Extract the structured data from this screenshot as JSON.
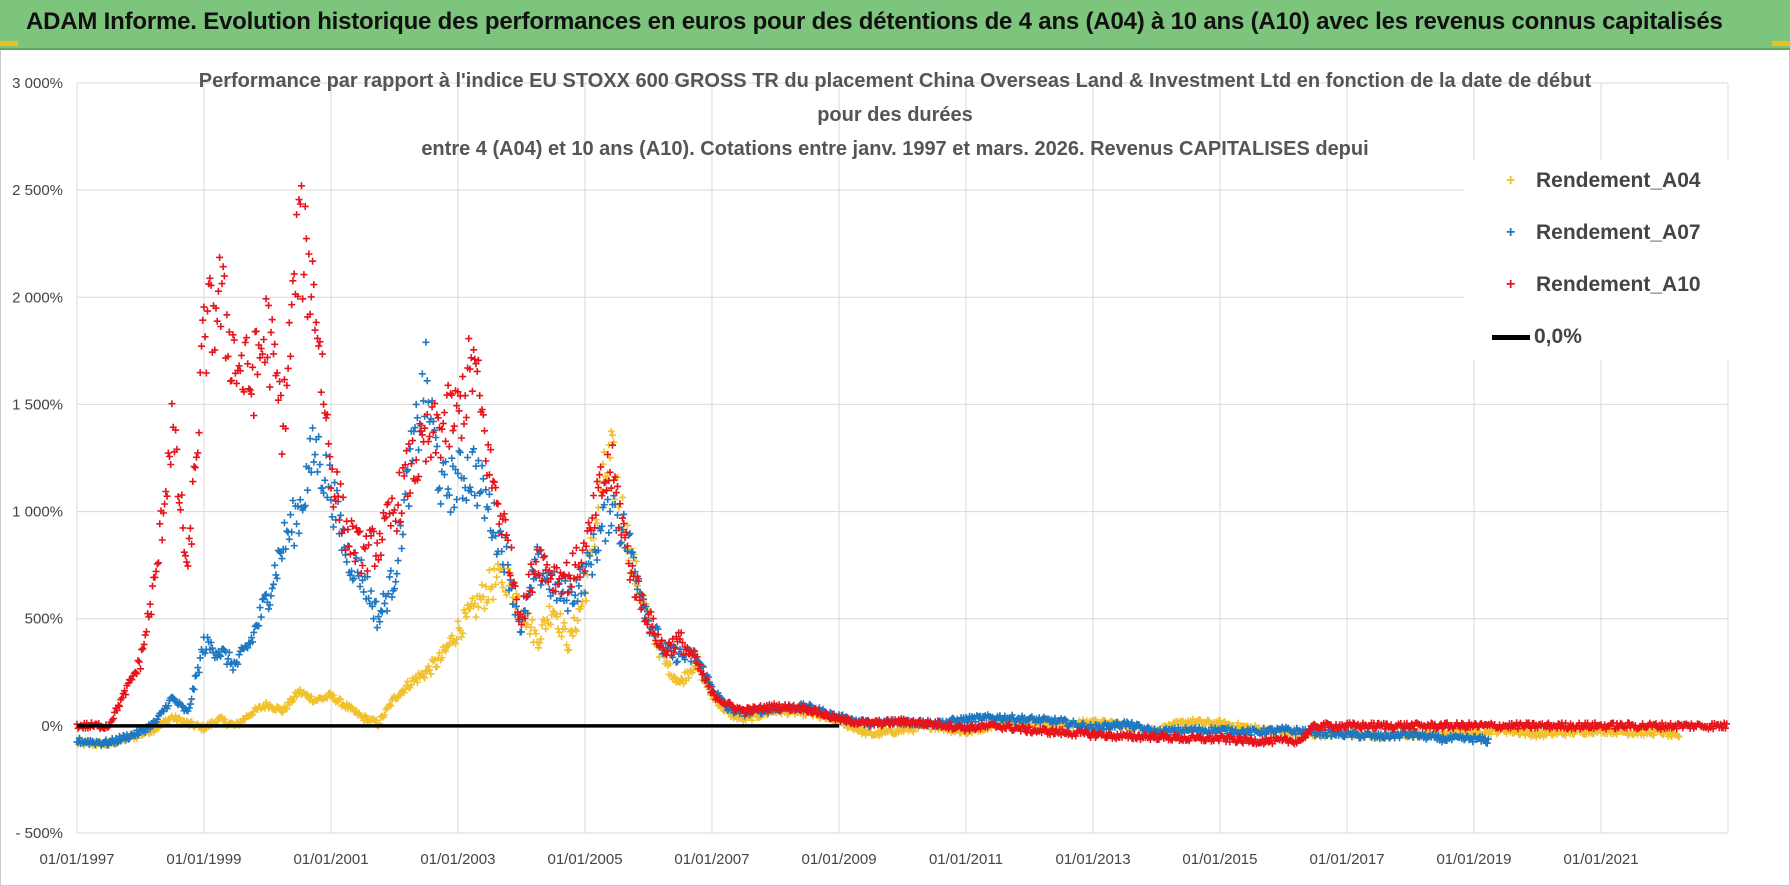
{
  "header": {
    "banner_title": "ADAM Informe. Evolution historique des performances en euros pour des détentions de 4 ans (A04) à 10 ans (A10) avec les revenus connus capitalisés"
  },
  "colors": {
    "banner": "#7dc47c",
    "A04": "#f2c12e",
    "A07": "#1f78c1",
    "A10": "#e8141c",
    "zero_line": "#000000",
    "grid": "#d9d9d9"
  },
  "chart_data": {
    "type": "scatter",
    "title_lines": [
      "Performance par rapport à l'indice EU STOXX 600 GROSS TR  du placement China Overseas Land & Investment Ltd en fonction de la date de début",
      "pour des durées",
      "entre 4 (A04) et 10 ans (A10). Cotations entre janv. 1997 et mars. 2026. Revenus CAPITALISES depui"
    ],
    "xlabel": "",
    "ylabel": "",
    "x_axis": {
      "type": "date",
      "range": [
        "1997-01-01",
        "2023-01-01"
      ],
      "tick_labels": [
        "01/01/1997",
        "01/01/1999",
        "01/01/2001",
        "01/01/2003",
        "01/01/2005",
        "01/01/2007",
        "01/01/2009",
        "01/01/2011",
        "01/01/2013",
        "01/01/2015",
        "01/01/2017",
        "01/01/2019",
        "01/01/2021"
      ]
    },
    "y_axis": {
      "range": [
        -500,
        3000
      ],
      "ticks": [
        -500,
        0,
        500,
        1000,
        1500,
        2000,
        2500,
        3000
      ],
      "tick_labels": [
        "- 500%",
        "0%",
        "500%",
        "1 000%",
        "1 500%",
        "2 000%",
        "2 500%",
        "3 000%"
      ]
    },
    "grid": "vertical and horizontal",
    "legend": {
      "position": "top-right",
      "entries": [
        "Rendement_A04",
        "Rendement_A07",
        "Rendement_A10",
        "0,0%"
      ]
    },
    "series": [
      {
        "name": "Rendement_A04",
        "marker": "+",
        "points": [
          [
            "1997-01-01",
            -80
          ],
          [
            "1997-07-01",
            -85
          ],
          [
            "1998-01-01",
            -40
          ],
          [
            "1998-04-01",
            -10
          ],
          [
            "1998-07-01",
            40
          ],
          [
            "1998-10-01",
            10
          ],
          [
            "1999-01-01",
            -10
          ],
          [
            "1999-04-01",
            30
          ],
          [
            "1999-07-01",
            0
          ],
          [
            "1999-10-01",
            60
          ],
          [
            "2000-01-01",
            100
          ],
          [
            "2000-04-01",
            70
          ],
          [
            "2000-07-01",
            160
          ],
          [
            "2000-10-01",
            120
          ],
          [
            "2001-01-01",
            140
          ],
          [
            "2001-04-01",
            90
          ],
          [
            "2001-07-01",
            40
          ],
          [
            "2001-10-01",
            10
          ],
          [
            "2002-01-01",
            130
          ],
          [
            "2002-04-01",
            200
          ],
          [
            "2002-07-01",
            250
          ],
          [
            "2002-10-01",
            320
          ],
          [
            "2003-01-01",
            450
          ],
          [
            "2003-04-01",
            540
          ],
          [
            "2003-07-01",
            650
          ],
          [
            "2003-10-01",
            700
          ],
          [
            "2004-01-01",
            560
          ],
          [
            "2004-04-01",
            400
          ],
          [
            "2004-07-01",
            560
          ],
          [
            "2004-10-01",
            380
          ],
          [
            "2005-01-01",
            620
          ],
          [
            "2005-04-01",
            1100
          ],
          [
            "2005-06-01",
            1250
          ],
          [
            "2005-10-01",
            750
          ],
          [
            "2006-01-01",
            500
          ],
          [
            "2006-04-01",
            300
          ],
          [
            "2006-07-01",
            200
          ],
          [
            "2006-10-01",
            300
          ],
          [
            "2007-01-01",
            140
          ],
          [
            "2007-04-01",
            60
          ],
          [
            "2007-07-01",
            30
          ],
          [
            "2008-01-01",
            70
          ],
          [
            "2008-07-01",
            60
          ],
          [
            "2009-01-01",
            20
          ],
          [
            "2009-07-01",
            -40
          ],
          [
            "2010-01-01",
            -20
          ],
          [
            "2010-07-01",
            0
          ],
          [
            "2011-01-01",
            -30
          ],
          [
            "2011-07-01",
            10
          ],
          [
            "2012-01-01",
            20
          ],
          [
            "2012-07-01",
            0
          ],
          [
            "2013-01-01",
            20
          ],
          [
            "2013-07-01",
            0
          ],
          [
            "2014-01-01",
            -20
          ],
          [
            "2014-07-01",
            20
          ],
          [
            "2015-01-01",
            10
          ],
          [
            "2015-07-01",
            -10
          ],
          [
            "2016-01-01",
            -30
          ],
          [
            "2016-07-01",
            -40
          ],
          [
            "2017-01-01",
            -30
          ],
          [
            "2017-07-01",
            -50
          ],
          [
            "2018-01-01",
            -40
          ],
          [
            "2018-07-01",
            -40
          ],
          [
            "2019-01-01",
            -30
          ],
          [
            "2019-07-01",
            -20
          ],
          [
            "2020-01-01",
            -40
          ],
          [
            "2020-07-01",
            -30
          ],
          [
            "2021-01-01",
            -20
          ],
          [
            "2021-07-01",
            -30
          ],
          [
            "2022-01-01",
            -30
          ],
          [
            "2022-04-01",
            -60
          ]
        ]
      },
      {
        "name": "Rendement_A07",
        "marker": "+",
        "points": [
          [
            "1997-01-01",
            -70
          ],
          [
            "1997-07-01",
            -80
          ],
          [
            "1998-01-01",
            -30
          ],
          [
            "1998-04-01",
            20
          ],
          [
            "1998-07-01",
            130
          ],
          [
            "1998-10-01",
            60
          ],
          [
            "1999-01-01",
            380
          ],
          [
            "1999-04-01",
            350
          ],
          [
            "1999-07-01",
            280
          ],
          [
            "1999-10-01",
            400
          ],
          [
            "2000-01-01",
            600
          ],
          [
            "2000-04-01",
            850
          ],
          [
            "2000-07-01",
            1000
          ],
          [
            "2000-10-01",
            1300
          ],
          [
            "2001-01-01",
            1100
          ],
          [
            "2001-04-01",
            800
          ],
          [
            "2001-07-01",
            700
          ],
          [
            "2001-10-01",
            500
          ],
          [
            "2002-01-01",
            700
          ],
          [
            "2002-04-01",
            1200
          ],
          [
            "2002-07-01",
            1600
          ],
          [
            "2002-10-01",
            1100
          ],
          [
            "2003-01-01",
            1150
          ],
          [
            "2003-04-01",
            1200
          ],
          [
            "2003-07-01",
            1000
          ],
          [
            "2003-10-01",
            800
          ],
          [
            "2004-01-01",
            450
          ],
          [
            "2004-04-01",
            750
          ],
          [
            "2004-07-01",
            650
          ],
          [
            "2004-10-01",
            600
          ],
          [
            "2005-01-01",
            700
          ],
          [
            "2005-04-01",
            900
          ],
          [
            "2005-06-01",
            1050
          ],
          [
            "2005-10-01",
            800
          ],
          [
            "2006-01-01",
            500
          ],
          [
            "2006-04-01",
            350
          ],
          [
            "2006-07-01",
            330
          ],
          [
            "2006-10-01",
            320
          ],
          [
            "2007-01-01",
            180
          ],
          [
            "2007-04-01",
            80
          ],
          [
            "2007-07-01",
            60
          ],
          [
            "2008-01-01",
            80
          ],
          [
            "2008-07-01",
            90
          ],
          [
            "2009-01-01",
            40
          ],
          [
            "2009-07-01",
            10
          ],
          [
            "2010-01-01",
            20
          ],
          [
            "2010-07-01",
            10
          ],
          [
            "2011-01-01",
            30
          ],
          [
            "2011-07-01",
            40
          ],
          [
            "2012-01-01",
            30
          ],
          [
            "2012-07-01",
            20
          ],
          [
            "2013-01-01",
            -10
          ],
          [
            "2013-07-01",
            10
          ],
          [
            "2014-01-01",
            -30
          ],
          [
            "2014-07-01",
            -20
          ],
          [
            "2015-01-01",
            -20
          ],
          [
            "2015-07-01",
            -30
          ],
          [
            "2016-01-01",
            -20
          ],
          [
            "2016-07-01",
            -30
          ],
          [
            "2017-01-01",
            -40
          ],
          [
            "2017-07-01",
            -50
          ],
          [
            "2018-01-01",
            -40
          ],
          [
            "2018-07-01",
            -60
          ],
          [
            "2019-01-01",
            -60
          ],
          [
            "2019-04-01",
            -70
          ]
        ]
      },
      {
        "name": "Rendement_A10",
        "marker": "+",
        "points": [
          [
            "1997-01-01",
            0
          ],
          [
            "1997-07-01",
            0
          ],
          [
            "1997-10-01",
            150
          ],
          [
            "1998-01-01",
            300
          ],
          [
            "1998-04-01",
            700
          ],
          [
            "1998-07-01",
            1400
          ],
          [
            "1998-10-01",
            700
          ],
          [
            "1999-01-01",
            1800
          ],
          [
            "1999-04-01",
            2000
          ],
          [
            "1999-07-01",
            1700
          ],
          [
            "1999-10-01",
            1600
          ],
          [
            "2000-01-01",
            1850
          ],
          [
            "2000-04-01",
            1400
          ],
          [
            "2000-07-01",
            2300
          ],
          [
            "2000-10-01",
            2000
          ],
          [
            "2001-01-01",
            1200
          ],
          [
            "2001-04-01",
            900
          ],
          [
            "2001-07-01",
            800
          ],
          [
            "2001-10-01",
            850
          ],
          [
            "2002-01-01",
            1000
          ],
          [
            "2002-04-01",
            1200
          ],
          [
            "2002-07-01",
            1300
          ],
          [
            "2002-10-01",
            1400
          ],
          [
            "2003-01-01",
            1450
          ],
          [
            "2003-04-01",
            1700
          ],
          [
            "2003-07-01",
            1200
          ],
          [
            "2003-10-01",
            900
          ],
          [
            "2004-01-01",
            500
          ],
          [
            "2004-04-01",
            800
          ],
          [
            "2004-07-01",
            700
          ],
          [
            "2004-10-01",
            700
          ],
          [
            "2005-01-01",
            800
          ],
          [
            "2005-04-01",
            1100
          ],
          [
            "2005-06-01",
            1200
          ],
          [
            "2005-10-01",
            700
          ],
          [
            "2006-01-01",
            500
          ],
          [
            "2006-04-01",
            350
          ],
          [
            "2006-07-01",
            400
          ],
          [
            "2006-10-01",
            300
          ],
          [
            "2007-01-01",
            150
          ],
          [
            "2007-04-01",
            100
          ],
          [
            "2007-07-01",
            70
          ],
          [
            "2008-01-01",
            90
          ],
          [
            "2008-07-01",
            80
          ],
          [
            "2009-01-01",
            30
          ],
          [
            "2009-07-01",
            10
          ],
          [
            "2010-01-01",
            20
          ],
          [
            "2010-07-01",
            10
          ],
          [
            "2011-01-01",
            -10
          ],
          [
            "2011-07-01",
            0
          ],
          [
            "2012-01-01",
            -20
          ],
          [
            "2012-07-01",
            -30
          ],
          [
            "2013-01-01",
            -40
          ],
          [
            "2013-07-01",
            -50
          ],
          [
            "2014-01-01",
            -50
          ],
          [
            "2014-07-01",
            -60
          ],
          [
            "2015-01-01",
            -60
          ],
          [
            "2015-07-01",
            -70
          ],
          [
            "2016-01-01",
            -70
          ],
          [
            "2016-04-01",
            -70
          ],
          [
            "2016-07-01",
            0
          ],
          [
            "2017-01-01",
            0
          ],
          [
            "2018-01-01",
            0
          ],
          [
            "2019-01-01",
            0
          ],
          [
            "2020-01-01",
            0
          ],
          [
            "2021-01-01",
            0
          ],
          [
            "2022-01-01",
            0
          ],
          [
            "2022-12-31",
            0
          ]
        ]
      }
    ],
    "reference_line": {
      "name": "0,0%",
      "y": 0
    }
  }
}
